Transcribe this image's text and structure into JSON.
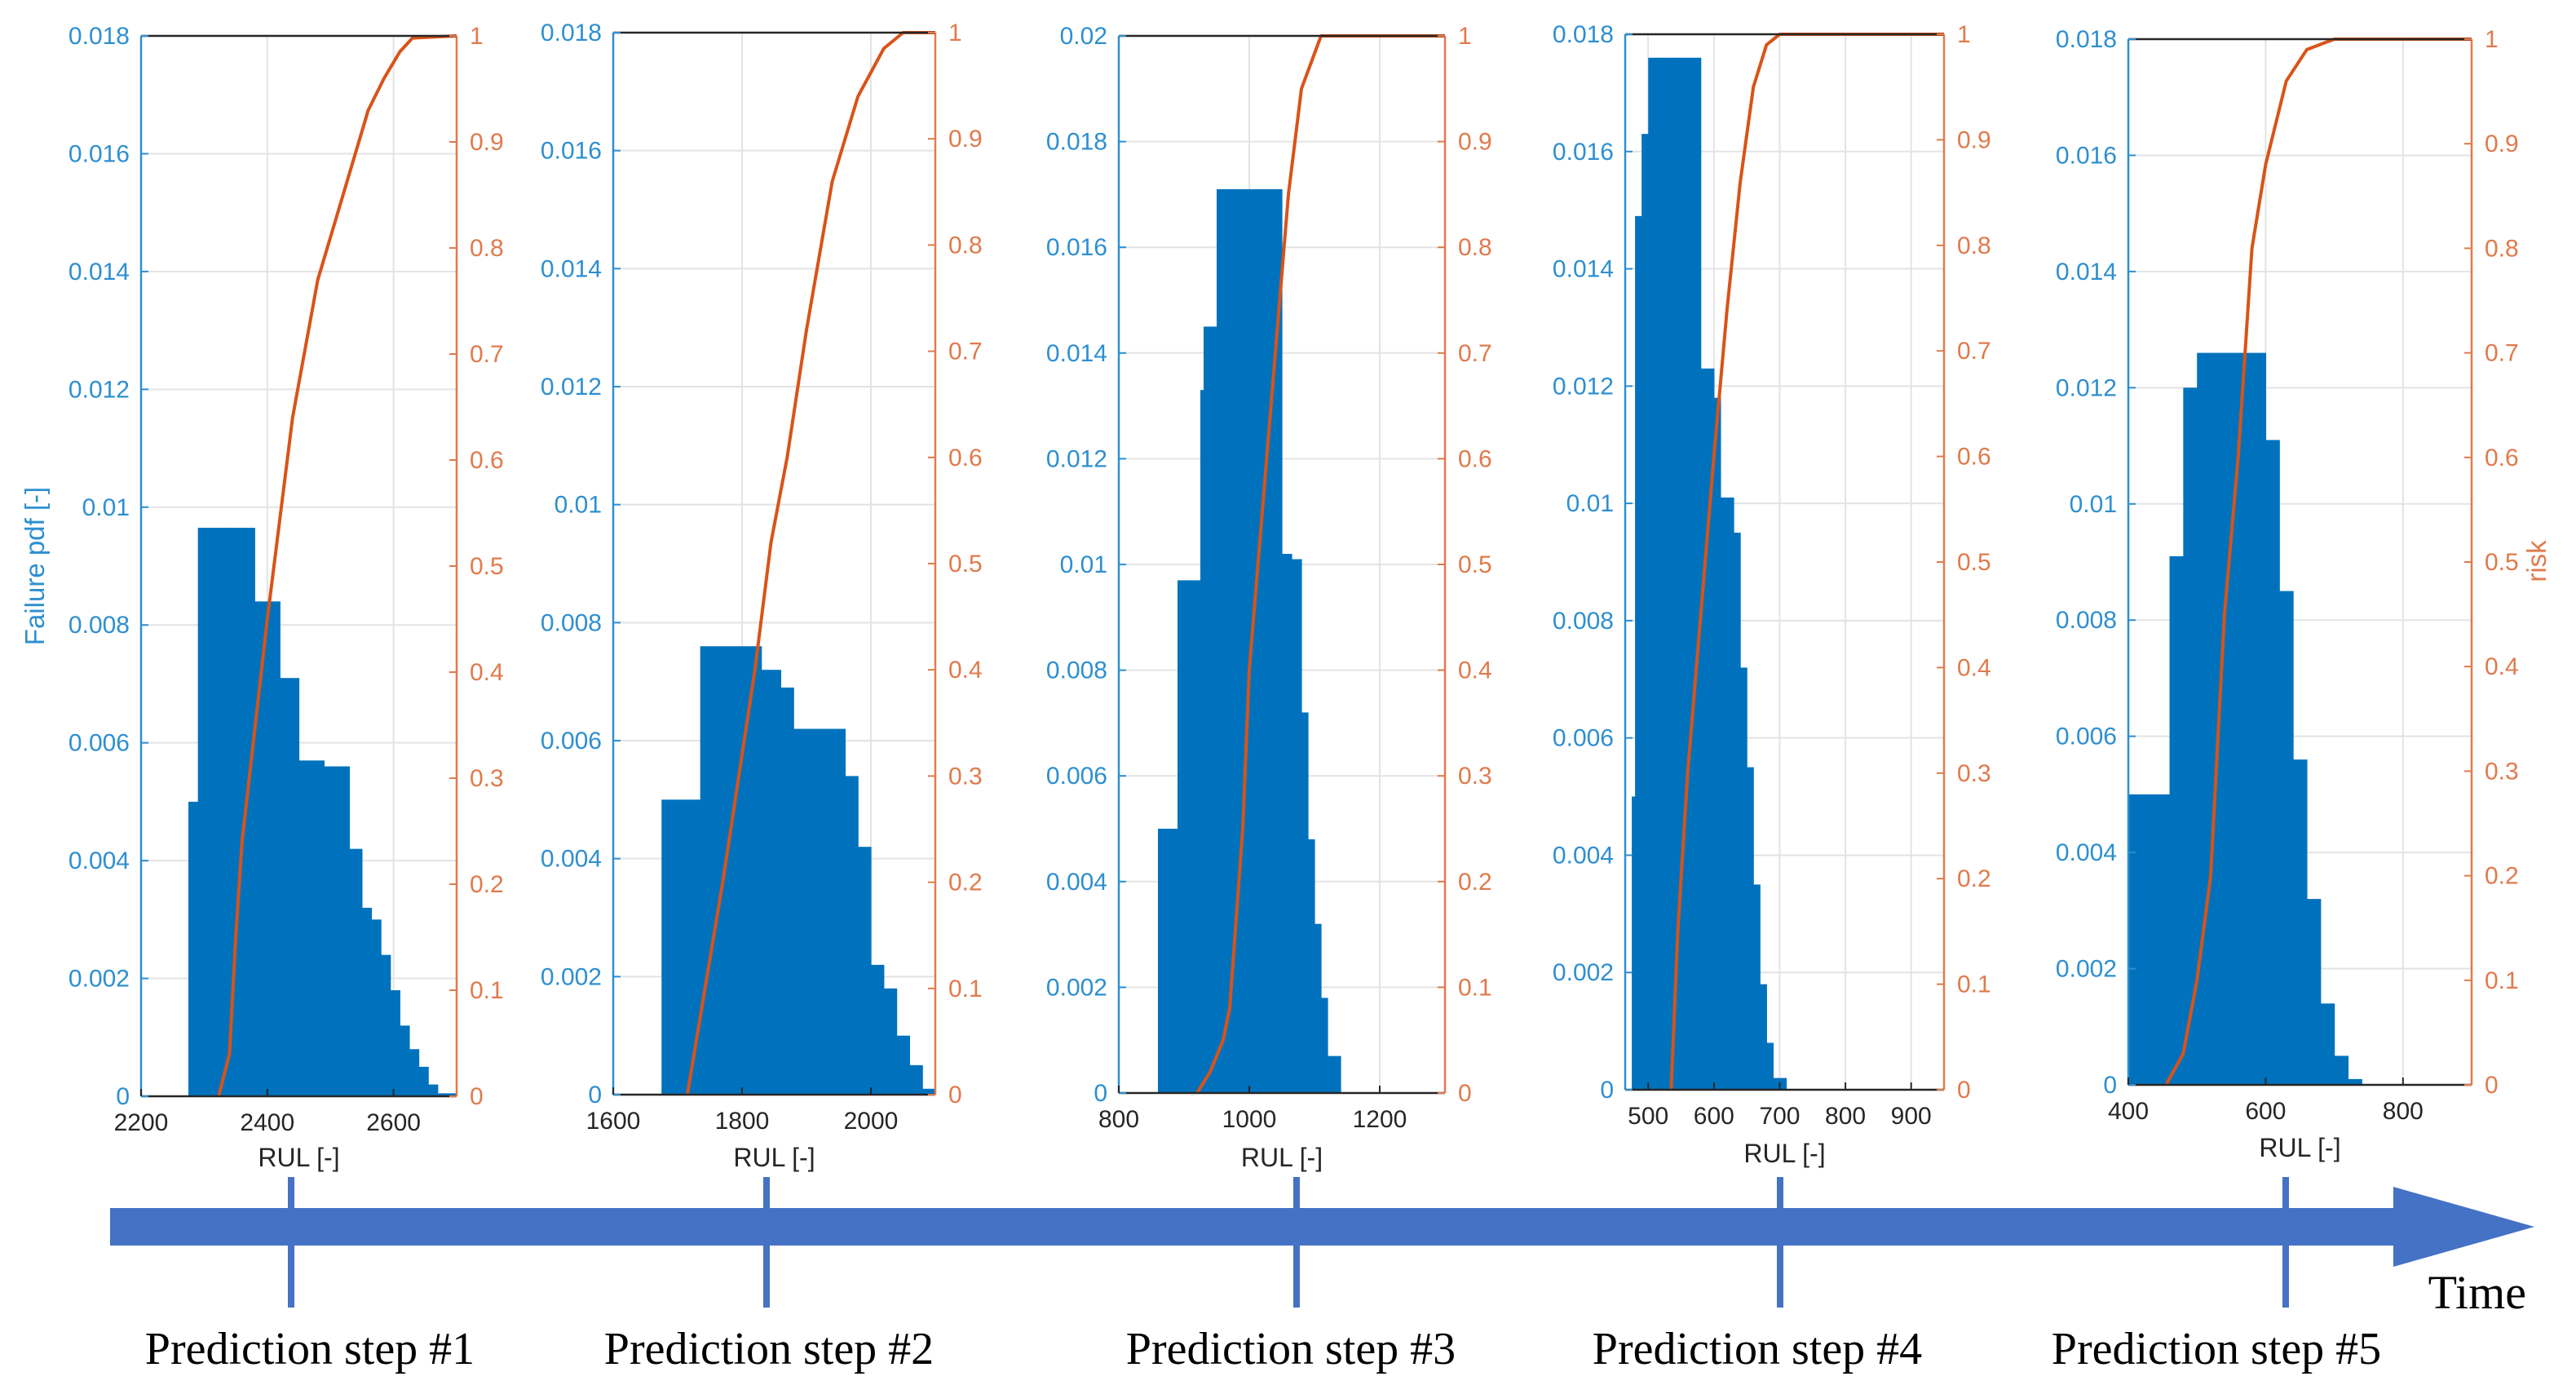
{
  "colors": {
    "pdf": "#0072BD",
    "risk": "#D95319",
    "pdf_label": "#2E8FD0",
    "risk_label": "#E07A4C",
    "arrow": "#4472C4",
    "grid": "#E3E3E3",
    "axis": "#262626",
    "text": "#000000"
  },
  "shared": {
    "ylabel_left": "Failure pdf [-]",
    "ylabel_right": "risk",
    "xlabel": "RUL [-]",
    "risk_ticks": [
      "0",
      "0.1",
      "0.2",
      "0.3",
      "0.4",
      "0.5",
      "0.6",
      "0.7",
      "0.8",
      "0.9",
      "1"
    ]
  },
  "timeline": {
    "time_label": "Time",
    "steps": [
      "Prediction step #1",
      "Prediction step #2",
      "Prediction step #3",
      "Prediction step #4",
      "Prediction step #5"
    ]
  },
  "chart_data": [
    {
      "type": "bar",
      "title": "Prediction step #1",
      "xlabel": "RUL [-]",
      "ylabel": "Failure pdf [-]",
      "ylabel_right": "risk",
      "xlim": [
        2200,
        2700
      ],
      "ylim": [
        0,
        0.018
      ],
      "ylim_right": [
        0,
        1
      ],
      "grid": true,
      "x_ticks": [
        "2200",
        "2400",
        "2600"
      ],
      "y_ticks": [
        "0",
        "0.002",
        "0.004",
        "0.006",
        "0.008",
        "0.01",
        "0.012",
        "0.014",
        "0.016",
        "0.018"
      ],
      "bars": {
        "x": [
          2275,
          2290,
          2340,
          2380,
          2420,
          2450,
          2490,
          2530,
          2550,
          2565,
          2580,
          2595,
          2610,
          2625,
          2640,
          2655,
          2670
        ],
        "width": [
          15,
          50,
          40,
          40,
          30,
          40,
          40,
          20,
          15,
          15,
          15,
          15,
          15,
          15,
          15,
          15,
          30
        ],
        "values": [
          0.005,
          0.00965,
          0.00965,
          0.0084,
          0.0071,
          0.0057,
          0.0056,
          0.0042,
          0.0032,
          0.003,
          0.0024,
          0.0018,
          0.0012,
          0.0008,
          0.0005,
          0.0002,
          5e-05
        ]
      },
      "risk_curve": {
        "x": [
          2323,
          2340,
          2350,
          2360,
          2400,
          2440,
          2480,
          2520,
          2560,
          2585,
          2610,
          2630,
          2700
        ],
        "y": [
          0,
          0.04,
          0.15,
          0.24,
          0.45,
          0.64,
          0.77,
          0.85,
          0.93,
          0.96,
          0.985,
          0.998,
          1
        ]
      }
    },
    {
      "type": "bar",
      "title": "Prediction step #2",
      "xlabel": "RUL [-]",
      "ylabel": "Failure pdf [-]",
      "ylabel_right": "risk",
      "xlim": [
        1600,
        2100
      ],
      "ylim": [
        0,
        0.018
      ],
      "ylim_right": [
        0,
        1
      ],
      "grid": true,
      "x_ticks": [
        "1600",
        "1800",
        "2000"
      ],
      "y_ticks": [
        "0",
        "0.002",
        "0.004",
        "0.006",
        "0.008",
        "0.01",
        "0.012",
        "0.014",
        "0.016",
        "0.018"
      ],
      "bars": {
        "x": [
          1675,
          1735,
          1830,
          1860,
          1880,
          1960,
          1980,
          2000,
          2020,
          2040,
          2060,
          2080
        ],
        "width": [
          60,
          95,
          30,
          20,
          80,
          20,
          20,
          20,
          20,
          20,
          20,
          20
        ],
        "values": [
          0.005,
          0.0076,
          0.0072,
          0.0069,
          0.0062,
          0.0054,
          0.0042,
          0.0022,
          0.0018,
          0.001,
          0.0005,
          0.0001
        ]
      },
      "risk_curve": {
        "x": [
          1715,
          1770,
          1820,
          1845,
          1870,
          1900,
          1940,
          1980,
          2020,
          2050,
          2100
        ],
        "y": [
          0,
          0.2,
          0.4,
          0.52,
          0.6,
          0.72,
          0.86,
          0.94,
          0.985,
          1,
          1
        ]
      }
    },
    {
      "type": "bar",
      "title": "Prediction step #3",
      "xlabel": "RUL [-]",
      "ylabel": "Failure pdf [-]",
      "ylabel_right": "risk",
      "xlim": [
        800,
        1300
      ],
      "ylim": [
        0,
        0.02
      ],
      "ylim_right": [
        0,
        1
      ],
      "grid": true,
      "x_ticks": [
        "800",
        "1000",
        "1200"
      ],
      "y_ticks": [
        "0",
        "0.002",
        "0.004",
        "0.006",
        "0.008",
        "0.01",
        "0.012",
        "0.014",
        "0.016",
        "0.018",
        "0.02"
      ],
      "bars": {
        "x": [
          860,
          890,
          925,
          930,
          950,
          1050,
          1065,
          1080,
          1090,
          1100,
          1110,
          1120
        ],
        "width": [
          30,
          35,
          5,
          20,
          100,
          15,
          15,
          10,
          10,
          10,
          10,
          20
        ],
        "values": [
          0.005,
          0.0097,
          0.0133,
          0.0145,
          0.0171,
          0.0102,
          0.0101,
          0.0072,
          0.0048,
          0.0032,
          0.0018,
          0.0007
        ]
      },
      "risk_curve": {
        "x": [
          920,
          940,
          960,
          970,
          990,
          1000,
          1020,
          1040,
          1060,
          1080,
          1110,
          1300
        ],
        "y": [
          0,
          0.02,
          0.05,
          0.08,
          0.25,
          0.4,
          0.55,
          0.7,
          0.85,
          0.95,
          1,
          1
        ]
      }
    },
    {
      "type": "bar",
      "title": "Prediction step #4",
      "xlabel": "RUL [-]",
      "ylabel": "Failure pdf [-]",
      "ylabel_right": "risk",
      "xlim": [
        465,
        950
      ],
      "ylim": [
        0,
        0.018
      ],
      "ylim_right": [
        0,
        1
      ],
      "grid": true,
      "x_ticks": [
        "500",
        "600",
        "700",
        "800",
        "900"
      ],
      "y_ticks": [
        "0",
        "0.002",
        "0.004",
        "0.006",
        "0.008",
        "0.01",
        "0.012",
        "0.014",
        "0.016",
        "0.018"
      ],
      "bars": {
        "x": [
          475,
          480,
          490,
          500,
          520,
          540,
          560,
          580,
          600,
          610,
          630,
          640,
          650,
          660,
          670,
          680,
          690
        ],
        "width": [
          5,
          10,
          10,
          20,
          20,
          20,
          20,
          20,
          10,
          20,
          10,
          10,
          10,
          10,
          10,
          10,
          20
        ],
        "values": [
          0.005,
          0.0149,
          0.0163,
          0.0176,
          0.0176,
          0.0176,
          0.0176,
          0.0123,
          0.0118,
          0.0101,
          0.0095,
          0.0072,
          0.0055,
          0.0035,
          0.0018,
          0.0008,
          0.0002
        ]
      },
      "risk_curve": {
        "x": [
          535,
          545,
          560,
          580,
          600,
          620,
          640,
          660,
          680,
          700,
          950
        ],
        "y": [
          0,
          0.15,
          0.3,
          0.45,
          0.6,
          0.74,
          0.86,
          0.95,
          0.99,
          1,
          1
        ]
      }
    },
    {
      "type": "bar",
      "title": "Prediction step #5",
      "xlabel": "RUL [-]",
      "ylabel": "Failure pdf [-]",
      "ylabel_right": "risk",
      "xlim": [
        400,
        900
      ],
      "ylim": [
        0,
        0.018
      ],
      "ylim_right": [
        0,
        1
      ],
      "grid": true,
      "x_ticks": [
        "400",
        "600",
        "800"
      ],
      "y_ticks": [
        "0",
        "0.002",
        "0.004",
        "0.006",
        "0.008",
        "0.01",
        "0.012",
        "0.014",
        "0.016",
        "0.018"
      ],
      "bars": {
        "x": [
          400,
          460,
          480,
          500,
          600,
          620,
          640,
          660,
          680,
          700,
          720
        ],
        "width": [
          60,
          20,
          20,
          100,
          20,
          20,
          20,
          20,
          20,
          20,
          20
        ],
        "values": [
          0.005,
          0.0091,
          0.012,
          0.0126,
          0.0111,
          0.0085,
          0.0056,
          0.0032,
          0.0014,
          0.0005,
          0.0001
        ]
      },
      "risk_curve": {
        "x": [
          455,
          480,
          500,
          520,
          540,
          560,
          580,
          600,
          630,
          660,
          700,
          900
        ],
        "y": [
          0,
          0.03,
          0.1,
          0.2,
          0.45,
          0.6,
          0.8,
          0.88,
          0.96,
          0.99,
          1,
          1
        ]
      }
    }
  ]
}
